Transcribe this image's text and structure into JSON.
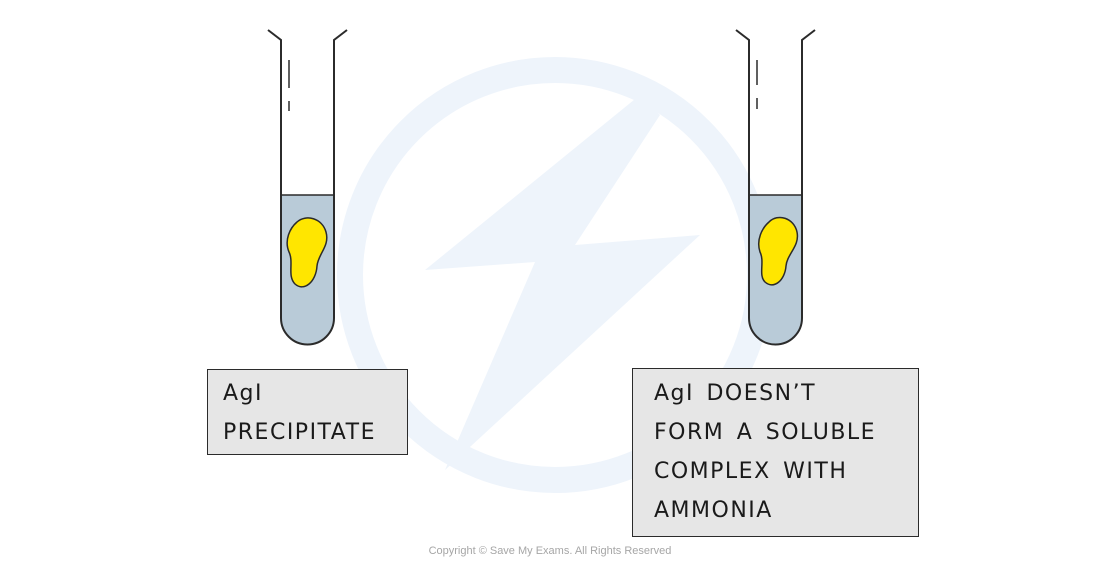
{
  "labels": {
    "left": [
      "AgI",
      "PRECIPITATE"
    ],
    "right": [
      "AgI  DOESN’T",
      "FORM  A  SOLUBLE",
      "COMPLEX  WITH",
      "AMMONIA"
    ]
  },
  "copyright": "Copyright © Save My Exams. All Rights Reserved",
  "colors": {
    "liquid": "#b9cbd8",
    "precipitate": "#ffe600",
    "box_fill": "#e6e6e6",
    "outline": "#2b2b2b",
    "watermark": "#eef4fb"
  },
  "icons": {
    "watermark": "save-my-exams-logo"
  }
}
